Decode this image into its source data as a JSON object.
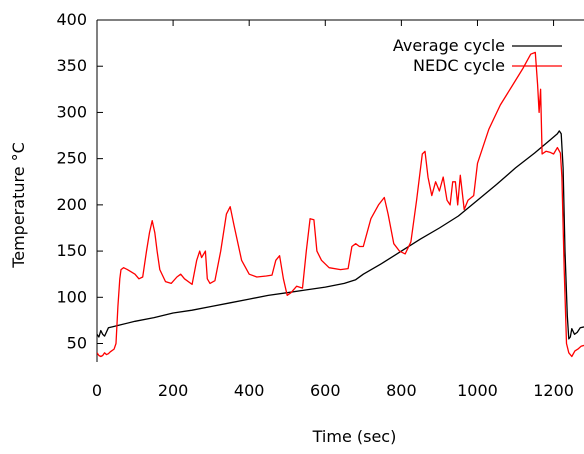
{
  "chart_data": {
    "type": "line",
    "title": "",
    "xlabel": "Time (sec)",
    "ylabel": "Temperature °C",
    "xlim": [
      0,
      1280
    ],
    "ylim": [
      30,
      400
    ],
    "xticks": [
      0,
      200,
      400,
      600,
      800,
      1000,
      1200
    ],
    "yticks": [
      50,
      100,
      150,
      200,
      250,
      300,
      350,
      400
    ],
    "grid": false,
    "legend_position": "top-right",
    "series": [
      {
        "name": "Average cycle",
        "color": "#000000",
        "points": [
          [
            0,
            60
          ],
          [
            5,
            57
          ],
          [
            10,
            64
          ],
          [
            15,
            60
          ],
          [
            20,
            58
          ],
          [
            30,
            67
          ],
          [
            40,
            68
          ],
          [
            60,
            70
          ],
          [
            100,
            74
          ],
          [
            150,
            78
          ],
          [
            200,
            83
          ],
          [
            250,
            86
          ],
          [
            300,
            90
          ],
          [
            350,
            94
          ],
          [
            400,
            98
          ],
          [
            450,
            102
          ],
          [
            500,
            105
          ],
          [
            550,
            108
          ],
          [
            600,
            111
          ],
          [
            650,
            115
          ],
          [
            680,
            119
          ],
          [
            700,
            125
          ],
          [
            750,
            137
          ],
          [
            800,
            150
          ],
          [
            850,
            163
          ],
          [
            900,
            175
          ],
          [
            950,
            188
          ],
          [
            1000,
            205
          ],
          [
            1050,
            222
          ],
          [
            1100,
            240
          ],
          [
            1150,
            256
          ],
          [
            1190,
            270
          ],
          [
            1210,
            277
          ],
          [
            1215,
            280
          ],
          [
            1220,
            277
          ],
          [
            1225,
            240
          ],
          [
            1230,
            150
          ],
          [
            1236,
            80
          ],
          [
            1240,
            55
          ],
          [
            1244,
            57
          ],
          [
            1248,
            66
          ],
          [
            1255,
            60
          ],
          [
            1262,
            62
          ],
          [
            1270,
            67
          ],
          [
            1280,
            68
          ]
        ]
      },
      {
        "name": "NEDC cycle",
        "color": "#ff0000",
        "points": [
          [
            0,
            40
          ],
          [
            5,
            37
          ],
          [
            10,
            36
          ],
          [
            15,
            37
          ],
          [
            20,
            40
          ],
          [
            25,
            38
          ],
          [
            30,
            39
          ],
          [
            35,
            41
          ],
          [
            45,
            44
          ],
          [
            50,
            50
          ],
          [
            55,
            90
          ],
          [
            60,
            120
          ],
          [
            63,
            130
          ],
          [
            70,
            132
          ],
          [
            80,
            130
          ],
          [
            100,
            125
          ],
          [
            110,
            120
          ],
          [
            120,
            122
          ],
          [
            130,
            150
          ],
          [
            138,
            170
          ],
          [
            145,
            183
          ],
          [
            152,
            170
          ],
          [
            158,
            150
          ],
          [
            165,
            130
          ],
          [
            180,
            117
          ],
          [
            195,
            115
          ],
          [
            210,
            122
          ],
          [
            220,
            125
          ],
          [
            230,
            120
          ],
          [
            250,
            114
          ],
          [
            262,
            140
          ],
          [
            270,
            150
          ],
          [
            275,
            143
          ],
          [
            285,
            150
          ],
          [
            290,
            120
          ],
          [
            297,
            115
          ],
          [
            310,
            118
          ],
          [
            325,
            150
          ],
          [
            340,
            190
          ],
          [
            350,
            198
          ],
          [
            360,
            178
          ],
          [
            380,
            140
          ],
          [
            400,
            125
          ],
          [
            420,
            122
          ],
          [
            445,
            123
          ],
          [
            460,
            124
          ],
          [
            470,
            140
          ],
          [
            480,
            145
          ],
          [
            490,
            120
          ],
          [
            500,
            102
          ],
          [
            510,
            105
          ],
          [
            525,
            112
          ],
          [
            540,
            110
          ],
          [
            550,
            150
          ],
          [
            560,
            185
          ],
          [
            570,
            184
          ],
          [
            578,
            150
          ],
          [
            590,
            140
          ],
          [
            610,
            132
          ],
          [
            640,
            130
          ],
          [
            660,
            131
          ],
          [
            670,
            155
          ],
          [
            680,
            158
          ],
          [
            690,
            155
          ],
          [
            700,
            155
          ],
          [
            720,
            185
          ],
          [
            740,
            200
          ],
          [
            755,
            208
          ],
          [
            765,
            190
          ],
          [
            780,
            158
          ],
          [
            795,
            150
          ],
          [
            810,
            147
          ],
          [
            825,
            160
          ],
          [
            840,
            205
          ],
          [
            855,
            255
          ],
          [
            862,
            258
          ],
          [
            870,
            230
          ],
          [
            880,
            210
          ],
          [
            890,
            225
          ],
          [
            900,
            215
          ],
          [
            910,
            230
          ],
          [
            920,
            205
          ],
          [
            928,
            200
          ],
          [
            935,
            225
          ],
          [
            942,
            225
          ],
          [
            948,
            200
          ],
          [
            955,
            232
          ],
          [
            965,
            195
          ],
          [
            975,
            205
          ],
          [
            990,
            210
          ],
          [
            1000,
            245
          ],
          [
            1030,
            282
          ],
          [
            1060,
            308
          ],
          [
            1090,
            328
          ],
          [
            1120,
            348
          ],
          [
            1140,
            363
          ],
          [
            1152,
            365
          ],
          [
            1158,
            330
          ],
          [
            1162,
            300
          ],
          [
            1166,
            325
          ],
          [
            1170,
            255
          ],
          [
            1180,
            258
          ],
          [
            1190,
            257
          ],
          [
            1200,
            255
          ],
          [
            1210,
            262
          ],
          [
            1218,
            256
          ],
          [
            1222,
            230
          ],
          [
            1228,
            130
          ],
          [
            1234,
            50
          ],
          [
            1240,
            40
          ],
          [
            1248,
            36
          ],
          [
            1256,
            42
          ],
          [
            1264,
            44
          ],
          [
            1272,
            47
          ],
          [
            1280,
            48
          ]
        ]
      }
    ]
  }
}
